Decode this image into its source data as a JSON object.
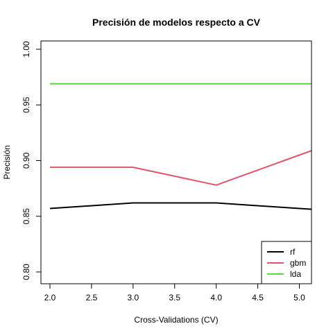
{
  "chart_data": {
    "type": "line",
    "title": "Precisión de modelos respecto a CV",
    "xlabel": "Cross-Validations (CV)",
    "ylabel": "Precisión",
    "xlim": [
      2,
      5.1
    ],
    "ylim": [
      0.79,
      1.0
    ],
    "xticks": [
      "2.0",
      "2.5",
      "3.0",
      "3.5",
      "4.0",
      "4.5",
      "5.0"
    ],
    "yticks": [
      "0.80",
      "0.85",
      "0.90",
      "0.95",
      "1.00"
    ],
    "x": [
      2,
      3,
      4,
      5
    ],
    "series": [
      {
        "name": "rf",
        "color": "#000000",
        "values": [
          0.857,
          0.862,
          0.862,
          0.857
        ]
      },
      {
        "name": "gbm",
        "color": "#DF536B",
        "values": [
          0.894,
          0.894,
          0.878,
          0.905
        ]
      },
      {
        "name": "lda",
        "color": "#61D04F",
        "values": [
          0.969,
          0.969,
          0.969,
          0.969
        ]
      }
    ],
    "legend_position": "bottom-right",
    "grid": false
  }
}
